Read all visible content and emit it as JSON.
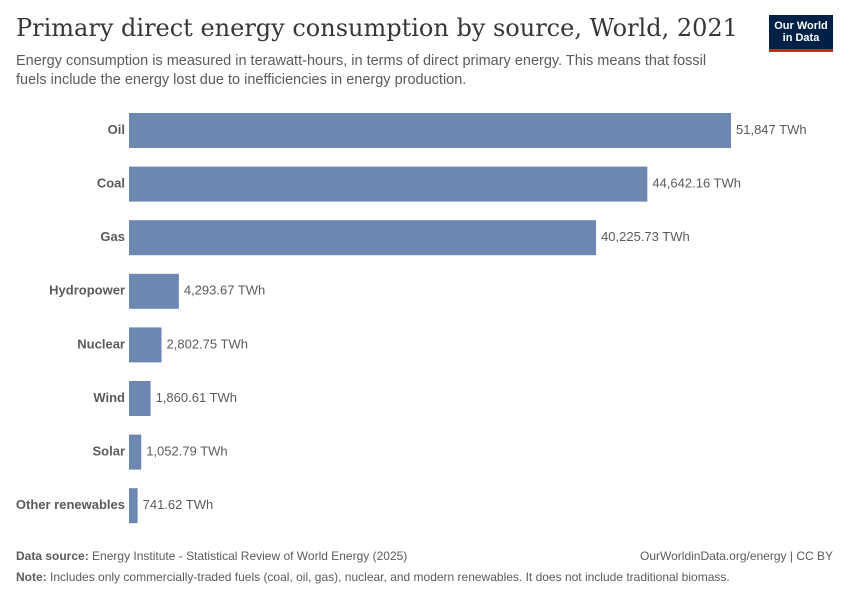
{
  "title": "Primary direct energy consumption by source, World, 2021",
  "subtitle": "Energy consumption is measured in terawatt-hours, in terms of direct primary energy. This means that fossil fuels include the energy lost due to inefficiencies in energy production.",
  "logo": {
    "line1": "Our World",
    "line2": "in Data",
    "bg_color": "#002147",
    "accent_color": "#ce261e"
  },
  "chart_data": {
    "type": "bar",
    "orientation": "horizontal",
    "categories": [
      "Oil",
      "Coal",
      "Gas",
      "Hydropower",
      "Nuclear",
      "Wind",
      "Solar",
      "Other renewables"
    ],
    "values": [
      51847,
      44642.16,
      40225.73,
      4293.67,
      2802.75,
      1860.61,
      1052.79,
      741.62
    ],
    "value_labels": [
      "51,847 TWh",
      "44,642.16 TWh",
      "40,225.73 TWh",
      "4,293.67 TWh",
      "2,802.75 TWh",
      "1,860.61 TWh",
      "1,052.79 TWh",
      "741.62 TWh"
    ],
    "unit": "TWh",
    "bar_color": "#6d87b0",
    "xlim": [
      0,
      51847
    ],
    "grid": false,
    "legend": "none"
  },
  "footer": {
    "source_label": "Data source:",
    "source_text": "Energy Institute - Statistical Review of World Energy (2025)",
    "url_text": "OurWorldinData.org/energy | CC BY",
    "note_label": "Note:",
    "note_text": "Includes only commercially-traded fuels (coal, oil, gas), nuclear, and modern renewables. It does not include traditional biomass."
  }
}
